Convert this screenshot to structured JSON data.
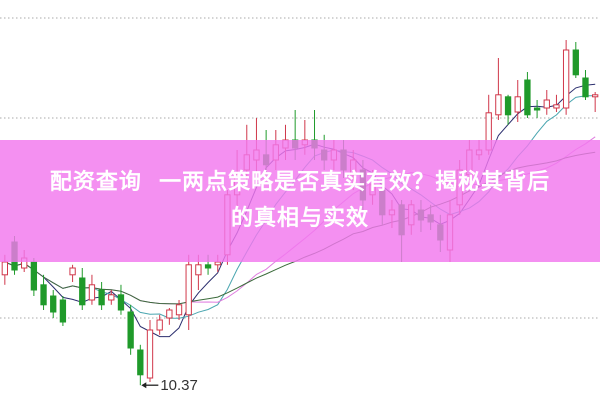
{
  "banner": {
    "line1": "配资查询  一两点策略是否真实有效？揭秘其背后",
    "line2": "的真相与实效"
  },
  "chart_data": {
    "type": "candlestick",
    "ylim": [
      10,
      20
    ],
    "grid": "dotted horizontal",
    "colors": {
      "up": "#d0374a",
      "down": "#1f9a2a",
      "ma5": "#2b2e6e",
      "ma10": "#4aa6b0",
      "ma20": "#e07ee0",
      "ma30": "#3b6b3b",
      "banner": "#f278ee"
    },
    "annotation": {
      "label": "10.37",
      "value": 10.37,
      "candle_index": 14
    },
    "candles_ohlc_order": "open, close, high, low",
    "candles": [
      [
        13.13,
        13.45,
        13.63,
        12.88
      ],
      [
        13.95,
        13.25,
        14.1,
        13.13
      ],
      [
        13.3,
        13.55,
        13.75,
        13.2
      ],
      [
        13.45,
        12.75,
        13.55,
        12.6
      ],
      [
        12.88,
        12.38,
        13.13,
        12.25
      ],
      [
        12.6,
        12.2,
        12.75,
        12.05
      ],
      [
        12.5,
        11.95,
        12.6,
        11.85
      ],
      [
        13.13,
        13.3,
        13.38,
        12.95
      ],
      [
        13.05,
        12.38,
        13.3,
        12.25
      ],
      [
        12.5,
        12.88,
        13.13,
        12.38
      ],
      [
        12.75,
        12.38,
        12.95,
        12.25
      ],
      [
        12.5,
        12.63,
        12.75,
        12.38
      ],
      [
        12.63,
        12.25,
        12.88,
        12.13
      ],
      [
        12.2,
        11.3,
        12.38,
        11.13
      ],
      [
        11.25,
        10.63,
        11.38,
        10.37
      ],
      [
        10.55,
        11.75,
        12.0,
        10.45
      ],
      [
        11.75,
        12.0,
        12.13,
        11.63
      ],
      [
        12.05,
        12.25,
        12.3,
        11.88
      ],
      [
        12.13,
        12.38,
        12.5,
        12.0
      ],
      [
        12.13,
        13.38,
        13.63,
        11.75
      ],
      [
        13.13,
        13.38,
        13.63,
        12.75
      ],
      [
        13.38,
        13.3,
        13.63,
        13.13
      ],
      [
        13.38,
        13.45,
        13.63,
        13.2
      ],
      [
        13.63,
        15.13,
        15.25,
        13.38
      ],
      [
        15.13,
        15.63,
        16.25,
        14.63
      ],
      [
        15.75,
        16.13,
        16.88,
        15.38
      ],
      [
        16.0,
        16.25,
        17.05,
        15.63
      ],
      [
        16.13,
        15.88,
        16.75,
        15.63
      ],
      [
        16.0,
        16.38,
        16.75,
        15.75
      ],
      [
        16.3,
        16.5,
        16.88,
        16.0
      ],
      [
        16.5,
        16.3,
        17.25,
        16.0
      ],
      [
        16.38,
        16.5,
        17.0,
        16.13
      ],
      [
        16.5,
        16.3,
        17.25,
        16.0
      ],
      [
        16.25,
        16.0,
        16.63,
        15.75
      ],
      [
        16.0,
        16.25,
        16.5,
        15.75
      ],
      [
        16.25,
        15.75,
        16.5,
        15.55
      ],
      [
        15.63,
        16.0,
        16.25,
        15.25
      ],
      [
        15.75,
        15.0,
        16.0,
        14.75
      ],
      [
        15.13,
        15.38,
        15.75,
        14.88
      ],
      [
        15.25,
        14.63,
        15.5,
        14.38
      ],
      [
        14.63,
        14.75,
        15.0,
        14.3
      ],
      [
        14.88,
        14.13,
        15.0,
        13.45
      ],
      [
        14.38,
        14.88,
        15.0,
        14.13
      ],
      [
        14.75,
        14.5,
        15.0,
        14.2
      ],
      [
        14.63,
        14.45,
        14.88,
        14.25
      ],
      [
        14.38,
        14.0,
        14.63,
        13.7
      ],
      [
        13.75,
        14.63,
        15.0,
        13.45
      ],
      [
        14.88,
        15.75,
        16.0,
        14.63
      ],
      [
        15.63,
        16.25,
        16.5,
        15.5
      ],
      [
        16.13,
        16.25,
        16.5,
        16.0
      ],
      [
        16.25,
        17.18,
        17.63,
        16.13
      ],
      [
        17.13,
        17.63,
        18.55,
        17.0
      ],
      [
        17.58,
        17.13,
        17.63,
        16.88
      ],
      [
        17.2,
        17.58,
        18.0,
        16.95
      ],
      [
        18.0,
        17.13,
        18.2,
        17.05
      ],
      [
        17.3,
        17.25,
        17.5,
        17.05
      ],
      [
        17.3,
        17.5,
        17.75,
        17.13
      ],
      [
        17.3,
        17.38,
        17.63,
        17.2
      ],
      [
        17.3,
        18.75,
        19.0,
        17.13
      ],
      [
        18.75,
        18.13,
        18.95,
        18.05
      ],
      [
        18.05,
        17.58,
        18.25,
        17.5
      ],
      [
        17.58,
        17.63,
        17.7,
        17.2
      ]
    ],
    "moving_averages": [
      5,
      10,
      20,
      30
    ]
  }
}
